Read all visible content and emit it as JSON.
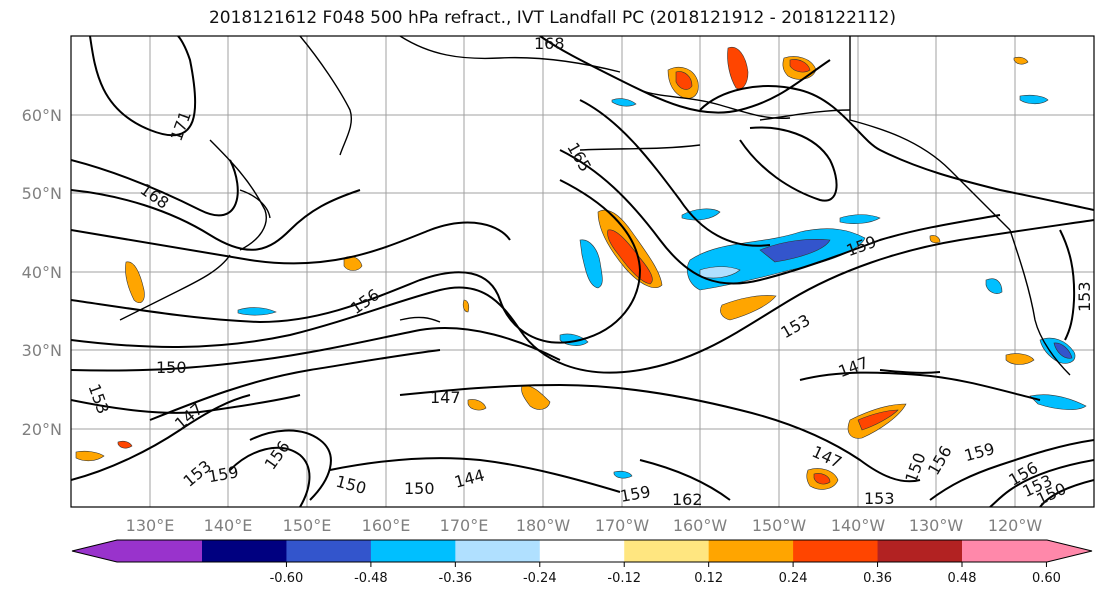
{
  "title": "2018121612 F048 500 hPa refract., IVT Landfall PC (2018121912 - 2018122112)",
  "lat_labels": [
    "20°N",
    "30°N",
    "40°N",
    "50°N",
    "60°N"
  ],
  "lon_labels": [
    "130°E",
    "140°E",
    "150°E",
    "160°E",
    "170°E",
    "180°W",
    "170°W",
    "160°W",
    "150°W",
    "140°W",
    "130°W",
    "120°W"
  ],
  "contour_labels": [
    "171",
    "168",
    "168",
    "165",
    "159",
    "156",
    "153",
    "153",
    "150",
    "147",
    "147",
    "147",
    "144",
    "150",
    "159",
    "156",
    "159",
    "153",
    "150",
    "156",
    "159",
    "147",
    "150",
    "156",
    "153",
    "150",
    "153",
    "162",
    "153"
  ],
  "colorbar": {
    "colors": [
      "#9933cc",
      "#000080",
      "#3355cc",
      "#00bfff",
      "#b0e0ff",
      "#ffffff",
      "#ffe680",
      "#ffa500",
      "#ff4500",
      "#b22222",
      "#ff88aa"
    ],
    "tick_labels": [
      "-0.60",
      "-0.48",
      "-0.36",
      "-0.24",
      "-0.12",
      "0.12",
      "0.24",
      "0.36",
      "0.48",
      "0.60"
    ]
  },
  "colors": {
    "contour": "#000000",
    "grid": "#a0a0a0",
    "coast": "#000000",
    "axis_label": "#808080"
  }
}
